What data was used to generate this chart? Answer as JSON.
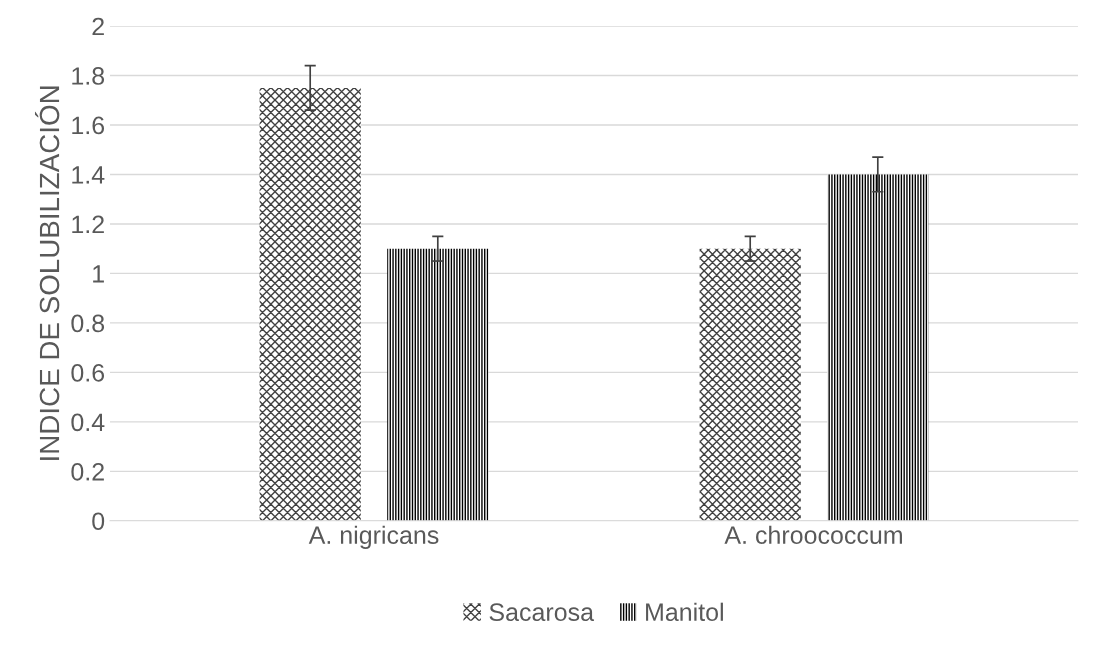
{
  "chart_data": {
    "type": "bar",
    "ylabel": "INDICE DE SOLUBILIZACIÓN",
    "categories": [
      "A. nigricans",
      "A. chroococcum"
    ],
    "series": [
      {
        "name": "Sacarosa",
        "color": "#404040",
        "values": [
          1.75,
          1.1
        ],
        "errors": [
          0.09,
          0.05
        ]
      },
      {
        "name": "Manitol",
        "color": "#000000",
        "values": [
          1.1,
          1.4
        ],
        "errors": [
          0.05,
          0.07
        ]
      }
    ],
    "ylim": [
      0,
      2
    ],
    "yticks": [
      0,
      0.2,
      0.4,
      0.6,
      0.8,
      1,
      1.2,
      1.4,
      1.6,
      1.8,
      2
    ],
    "grid": "y",
    "legend": "bottom"
  }
}
